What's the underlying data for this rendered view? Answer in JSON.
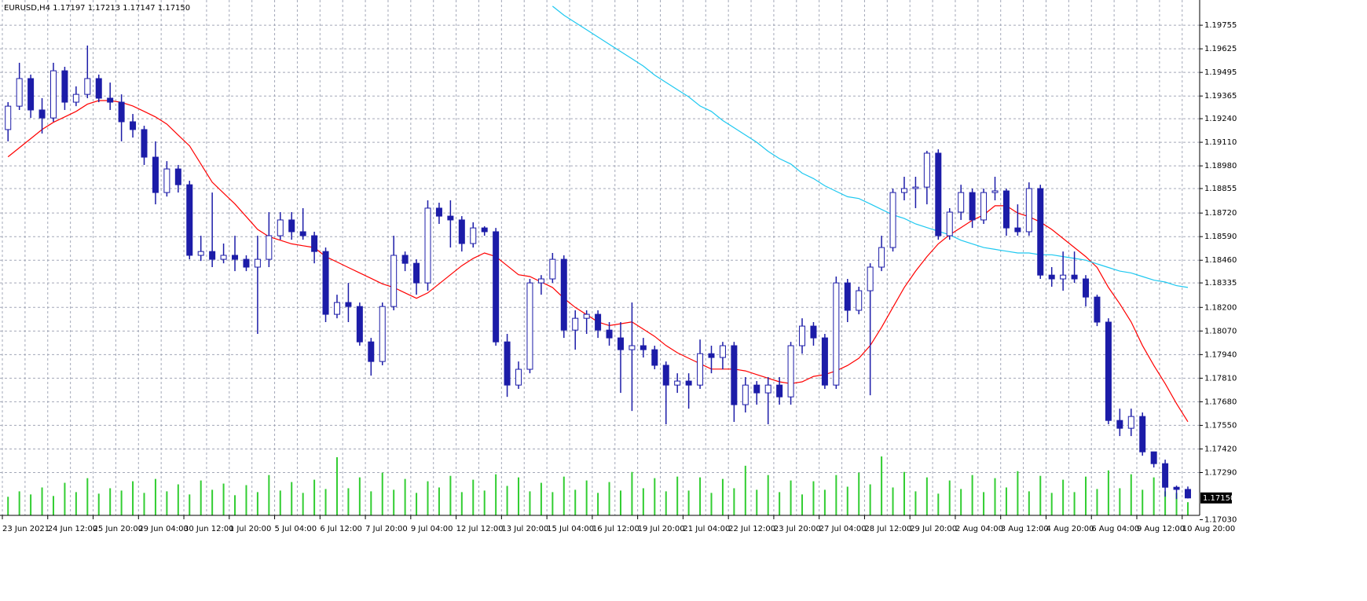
{
  "chart_data": {
    "type": "candlestick",
    "title": "EURUSD,H4 1.17197 1.17213 1.17147 1.17150",
    "categories": [
      "23 Jun 2021",
      null,
      null,
      null,
      "24 Jun 12:00",
      null,
      null,
      null,
      "25 Jun 20:00",
      null,
      null,
      null,
      "29 Jun 04:00",
      null,
      null,
      null,
      "30 Jun 12:00",
      null,
      null,
      null,
      "1 Jul 20:00",
      null,
      null,
      null,
      "5 Jul 04:00",
      null,
      null,
      null,
      "6 Jul 12:00",
      null,
      null,
      null,
      "7 Jul 20:00",
      null,
      null,
      null,
      "9 Jul 04:00",
      null,
      null,
      null,
      "12 Jul 12:00",
      null,
      null,
      null,
      "13 Jul 20:00",
      null,
      null,
      null,
      "15 Jul 04:00",
      null,
      null,
      null,
      "16 Jul 12:00",
      null,
      null,
      null,
      "19 Jul 20:00",
      null,
      null,
      null,
      "21 Jul 04:00",
      null,
      null,
      null,
      "22 Jul 12:00",
      null,
      null,
      null,
      "23 Jul 20:00",
      null,
      null,
      null,
      "27 Jul 04:00",
      null,
      null,
      null,
      "28 Jul 12:00",
      null,
      null,
      null,
      "29 Jul 20:00",
      null,
      null,
      null,
      "2 Aug 04:00",
      null,
      null,
      null,
      "3 Aug 12:00",
      null,
      null,
      null,
      "4 Aug 20:00",
      null,
      null,
      null,
      "6 Aug 04:00",
      null,
      null,
      null,
      "9 Aug 12:00",
      null,
      null,
      null,
      "10 Aug 20:00"
    ],
    "open": [
      1.1918,
      1.19309,
      1.19461,
      1.19288,
      1.19244,
      1.19504,
      1.19331,
      1.19374,
      1.19461,
      1.19353,
      1.19331,
      1.19223,
      1.1918,
      1.19028,
      1.18833,
      1.18963,
      1.18876,
      1.18487,
      1.18508,
      1.18465,
      1.18487,
      1.18465,
      1.18422,
      1.18465,
      1.18595,
      1.18682,
      1.18617,
      1.18595,
      1.18508,
      1.18162,
      1.18227,
      1.18205,
      1.1801,
      1.17902,
      1.18205,
      1.18487,
      1.18443,
      1.18335,
      1.18747,
      1.18703,
      1.18682,
      1.18552,
      1.18638,
      1.18617,
      1.1801,
      1.17772,
      1.17859,
      1.18335,
      1.18357,
      1.18465,
      1.18075,
      1.1814,
      1.18162,
      1.18075,
      1.18032,
      1.17967,
      1.17989,
      1.17967,
      1.17881,
      1.17772,
      1.17794,
      1.17772,
      1.17945,
      1.17924,
      1.17989,
      1.17664,
      1.17772,
      1.17729,
      1.17772,
      1.17707,
      1.17989,
      1.18097,
      1.18032,
      1.17772,
      1.18335,
      1.18184,
      1.18292,
      1.18422,
      1.1853,
      1.18833,
      1.18855,
      1.18863,
      1.1905,
      1.18595,
      1.18725,
      1.18833,
      1.18682,
      1.18833,
      1.18842,
      1.18638,
      1.18617,
      1.18855,
      1.18378,
      1.18357,
      1.18378,
      1.18357,
      1.18257,
      1.18119,
      1.17577,
      1.17534,
      1.17599,
      1.17404,
      1.17339,
      1.17209,
      1.17197
    ],
    "high": [
      1.19331,
      1.19548,
      1.19483,
      1.19353,
      1.19548,
      1.19526,
      1.19418,
      1.19643,
      1.19483,
      1.19439,
      1.19374,
      1.19266,
      1.19201,
      1.19115,
      1.19006,
      1.18985,
      1.18898,
      1.18595,
      1.18833,
      1.18552,
      1.18595,
      1.18487,
      1.18595,
      1.18725,
      1.18725,
      1.18725,
      1.18747,
      1.18617,
      1.1853,
      1.1827,
      1.18335,
      1.18227,
      1.18032,
      1.18227,
      1.18595,
      1.18508,
      1.18465,
      1.1879,
      1.18777,
      1.1879,
      1.18703,
      1.18669,
      1.18647,
      1.18638,
      1.18054,
      1.17902,
      1.18357,
      1.18378,
      1.185,
      1.18487,
      1.18184,
      1.18184,
      1.18184,
      1.18119,
      1.18119,
      1.18227,
      1.18032,
      1.17989,
      1.17902,
      1.17837,
      1.17837,
      1.18023,
      1.17989,
      1.1801,
      1.1801,
      1.17816,
      1.17794,
      1.17816,
      1.17816,
      1.1801,
      1.1814,
      1.18119,
      1.18054,
      1.1837,
      1.18357,
      1.18314,
      1.18443,
      1.18595,
      1.18855,
      1.1892,
      1.1892,
      1.19063,
      1.19071,
      1.18747,
      1.18876,
      1.18855,
      1.18855,
      1.1892,
      1.18855,
      1.18768,
      1.18889,
      1.18876,
      1.18422,
      1.18508,
      1.18508,
      1.18378,
      1.1827,
      1.1814,
      1.17642,
      1.17642,
      1.17621,
      1.17404,
      1.17361,
      1.17218,
      1.17213
    ],
    "low": [
      1.19115,
      1.19288,
      1.19244,
      1.19158,
      1.19223,
      1.19288,
      1.19309,
      1.19353,
      1.19331,
      1.19288,
      1.19115,
      1.19136,
      1.18985,
      1.18768,
      1.18811,
      1.18833,
      1.18465,
      1.18456,
      1.18422,
      1.18443,
      1.184,
      1.184,
      1.18054,
      1.18422,
      1.18573,
      1.18573,
      1.18573,
      1.18443,
      1.18119,
      1.1814,
      1.18119,
      1.17989,
      1.17824,
      1.17881,
      1.18184,
      1.184,
      1.1827,
      1.18292,
      1.1866,
      1.1853,
      1.18508,
      1.1853,
      1.18595,
      1.17989,
      1.17707,
      1.17751,
      1.17837,
      1.1827,
      1.18335,
      1.18032,
      1.17967,
      1.18054,
      1.18032,
      1.17989,
      1.17729,
      1.17629,
      1.17924,
      1.17859,
      1.17556,
      1.17729,
      1.17642,
      1.17751,
      1.17837,
      1.17859,
      1.17569,
      1.17621,
      1.17664,
      1.17556,
      1.17664,
      1.17664,
      1.17945,
      1.17989,
      1.17751,
      1.17751,
      1.18119,
      1.18162,
      1.17716,
      1.184,
      1.18508,
      1.1879,
      1.18747,
      1.18768,
      1.18573,
      1.18573,
      1.18682,
      1.18638,
      1.1866,
      1.1879,
      1.18595,
      1.18595,
      1.18595,
      1.18357,
      1.18314,
      1.18292,
      1.18335,
      1.18205,
      1.18097,
      1.17556,
      1.17491,
      1.17491,
      1.17383,
      1.17318,
      1.17157,
      1.17144,
      1.17147
    ],
    "close": [
      1.19309,
      1.19461,
      1.19288,
      1.19244,
      1.19504,
      1.19331,
      1.19374,
      1.19461,
      1.19353,
      1.19331,
      1.19223,
      1.1918,
      1.19028,
      1.18833,
      1.18963,
      1.18876,
      1.18487,
      1.18508,
      1.18465,
      1.18487,
      1.18465,
      1.18422,
      1.18465,
      1.18595,
      1.18682,
      1.18617,
      1.18595,
      1.18508,
      1.18162,
      1.18227,
      1.18205,
      1.1801,
      1.17902,
      1.18205,
      1.18487,
      1.18443,
      1.18335,
      1.18747,
      1.18703,
      1.18682,
      1.18552,
      1.18638,
      1.18617,
      1.1801,
      1.17772,
      1.17859,
      1.18335,
      1.18357,
      1.18465,
      1.18075,
      1.1814,
      1.18162,
      1.18075,
      1.18032,
      1.17967,
      1.17989,
      1.17967,
      1.17881,
      1.17772,
      1.17794,
      1.17772,
      1.17945,
      1.17924,
      1.17989,
      1.17664,
      1.17772,
      1.17729,
      1.17772,
      1.17707,
      1.17989,
      1.18097,
      1.18032,
      1.17772,
      1.18335,
      1.18184,
      1.18292,
      1.18422,
      1.1853,
      1.18833,
      1.18855,
      1.18863,
      1.1905,
      1.18595,
      1.18725,
      1.18833,
      1.18682,
      1.18833,
      1.18842,
      1.18638,
      1.18617,
      1.18855,
      1.18378,
      1.18357,
      1.18378,
      1.18357,
      1.18257,
      1.18119,
      1.17577,
      1.17534,
      1.17599,
      1.17404,
      1.17339,
      1.17209,
      1.17197,
      1.1715
    ],
    "volume": [
      4800,
      6200,
      5400,
      7200,
      5000,
      8400,
      6000,
      9600,
      5600,
      7000,
      6400,
      8800,
      5800,
      9400,
      6200,
      8000,
      5400,
      9000,
      6600,
      8200,
      5200,
      7800,
      6000,
      10400,
      6400,
      8600,
      5800,
      9200,
      6800,
      15000,
      7000,
      9800,
      6200,
      11000,
      6600,
      9400,
      5800,
      8800,
      7200,
      10200,
      6000,
      9200,
      6400,
      10600,
      7600,
      9800,
      6200,
      8400,
      6000,
      10000,
      6600,
      9000,
      5800,
      8600,
      6400,
      11200,
      7000,
      9600,
      6200,
      10000,
      6400,
      9800,
      5800,
      9400,
      7000,
      12800,
      6600,
      10400,
      6000,
      9000,
      5400,
      8800,
      6600,
      10400,
      7400,
      11000,
      8000,
      15200,
      7200,
      11200,
      6200,
      9800,
      5600,
      9000,
      6800,
      10400,
      6000,
      9600,
      7200,
      11400,
      6200,
      10200,
      5800,
      9200,
      6000,
      10000,
      6800,
      11600,
      7000,
      10600,
      6600,
      9800,
      6200,
      5800,
      3400
    ],
    "overlays": [
      {
        "color": "#ff0000",
        "values": [
          1.1903,
          1.1908,
          1.1913,
          1.1918,
          1.1922,
          1.1925,
          1.1928,
          1.1932,
          1.1934,
          1.1934,
          1.1933,
          1.1931,
          1.1928,
          1.1925,
          1.1921,
          1.1915,
          1.1909,
          1.1899,
          1.1889,
          1.1883,
          1.1877,
          1.187,
          1.1863,
          1.1859,
          1.1857,
          1.1855,
          1.1854,
          1.1853,
          1.1848,
          1.1845,
          1.1842,
          1.1839,
          1.1836,
          1.1833,
          1.1831,
          1.1828,
          1.1825,
          1.1828,
          1.1833,
          1.1838,
          1.1843,
          1.1847,
          1.185,
          1.1848,
          1.1843,
          1.1838,
          1.1837,
          1.1834,
          1.1831,
          1.1825,
          1.182,
          1.1816,
          1.1812,
          1.181,
          1.1811,
          1.1812,
          1.1808,
          1.1804,
          1.1799,
          1.1795,
          1.1792,
          1.1789,
          1.1786,
          1.1786,
          1.1786,
          1.1785,
          1.1783,
          1.1781,
          1.1779,
          1.1778,
          1.1779,
          1.1782,
          1.1783,
          1.1785,
          1.1788,
          1.1792,
          1.1799,
          1.1809,
          1.182,
          1.1831,
          1.184,
          1.1848,
          1.1855,
          1.186,
          1.1864,
          1.1868,
          1.1871,
          1.1876,
          1.1876,
          1.1872,
          1.187,
          1.1867,
          1.1863,
          1.1858,
          1.1853,
          1.1848,
          1.1842,
          1.1831,
          1.1822,
          1.1812,
          1.1799,
          1.1788,
          1.1778,
          1.1767,
          1.1757
        ]
      },
      {
        "color": "#1ec8f0",
        "values": [
          null,
          null,
          null,
          null,
          null,
          null,
          null,
          null,
          null,
          null,
          null,
          null,
          null,
          null,
          null,
          null,
          null,
          null,
          null,
          null,
          null,
          null,
          null,
          null,
          null,
          null,
          null,
          null,
          null,
          null,
          null,
          null,
          null,
          null,
          null,
          null,
          null,
          null,
          null,
          null,
          null,
          null,
          null,
          null,
          null,
          null,
          null,
          null,
          1.1986,
          1.1981,
          1.1977,
          1.1973,
          1.1969,
          1.1965,
          1.1961,
          1.1957,
          1.1953,
          1.1948,
          1.1944,
          1.194,
          1.1936,
          1.1931,
          1.1928,
          1.1923,
          1.1919,
          1.1915,
          1.1911,
          1.1906,
          1.1902,
          1.1899,
          1.1894,
          1.1891,
          1.1887,
          1.1884,
          1.1881,
          1.188,
          1.1877,
          1.1874,
          1.1871,
          1.1869,
          1.1866,
          1.1864,
          1.1862,
          1.186,
          1.1857,
          1.1855,
          1.1853,
          1.1852,
          1.1851,
          1.185,
          1.185,
          1.1849,
          1.1849,
          1.1848,
          1.1847,
          1.1846,
          1.1844,
          1.1842,
          1.184,
          1.1839,
          1.1837,
          1.1835,
          1.1834,
          1.1832,
          1.1831
        ]
      }
    ],
    "ylim": [
      1.17054,
      1.19894
    ],
    "yticks": [
      1.19755,
      1.19625,
      1.19495,
      1.19365,
      {
        "value": 1.1924,
        "label": "1.19240"
      },
      {
        "value": 1.1911,
        "label": "1.19110"
      },
      {
        "value": 1.1898,
        "label": "1.18980"
      },
      1.18855,
      {
        "value": 1.1872,
        "label": "1.18720"
      },
      {
        "value": 1.1859,
        "label": "1.18590"
      },
      {
        "value": 1.1846,
        "label": "1.18460"
      },
      1.18335,
      {
        "value": 1.182,
        "label": "1.18200"
      },
      {
        "value": 1.1807,
        "label": "1.18070"
      },
      {
        "value": 1.1794,
        "label": "1.17940"
      },
      {
        "value": 1.1781,
        "label": "1.17810"
      },
      {
        "value": 1.1768,
        "label": "1.17680"
      },
      {
        "value": 1.1755,
        "label": "1.17550"
      },
      {
        "value": 1.1742,
        "label": "1.17420"
      },
      {
        "value": 1.1729,
        "label": "1.17290"
      },
      {
        "value": 1.1703,
        "label": "1.17030"
      }
    ],
    "last_price": {
      "value": 1.1715,
      "label": "1.17150"
    },
    "candle_color": "#1c1ca8",
    "volume_color": "#32cd32",
    "grid": true,
    "grid_color": "#a3a8b8"
  }
}
